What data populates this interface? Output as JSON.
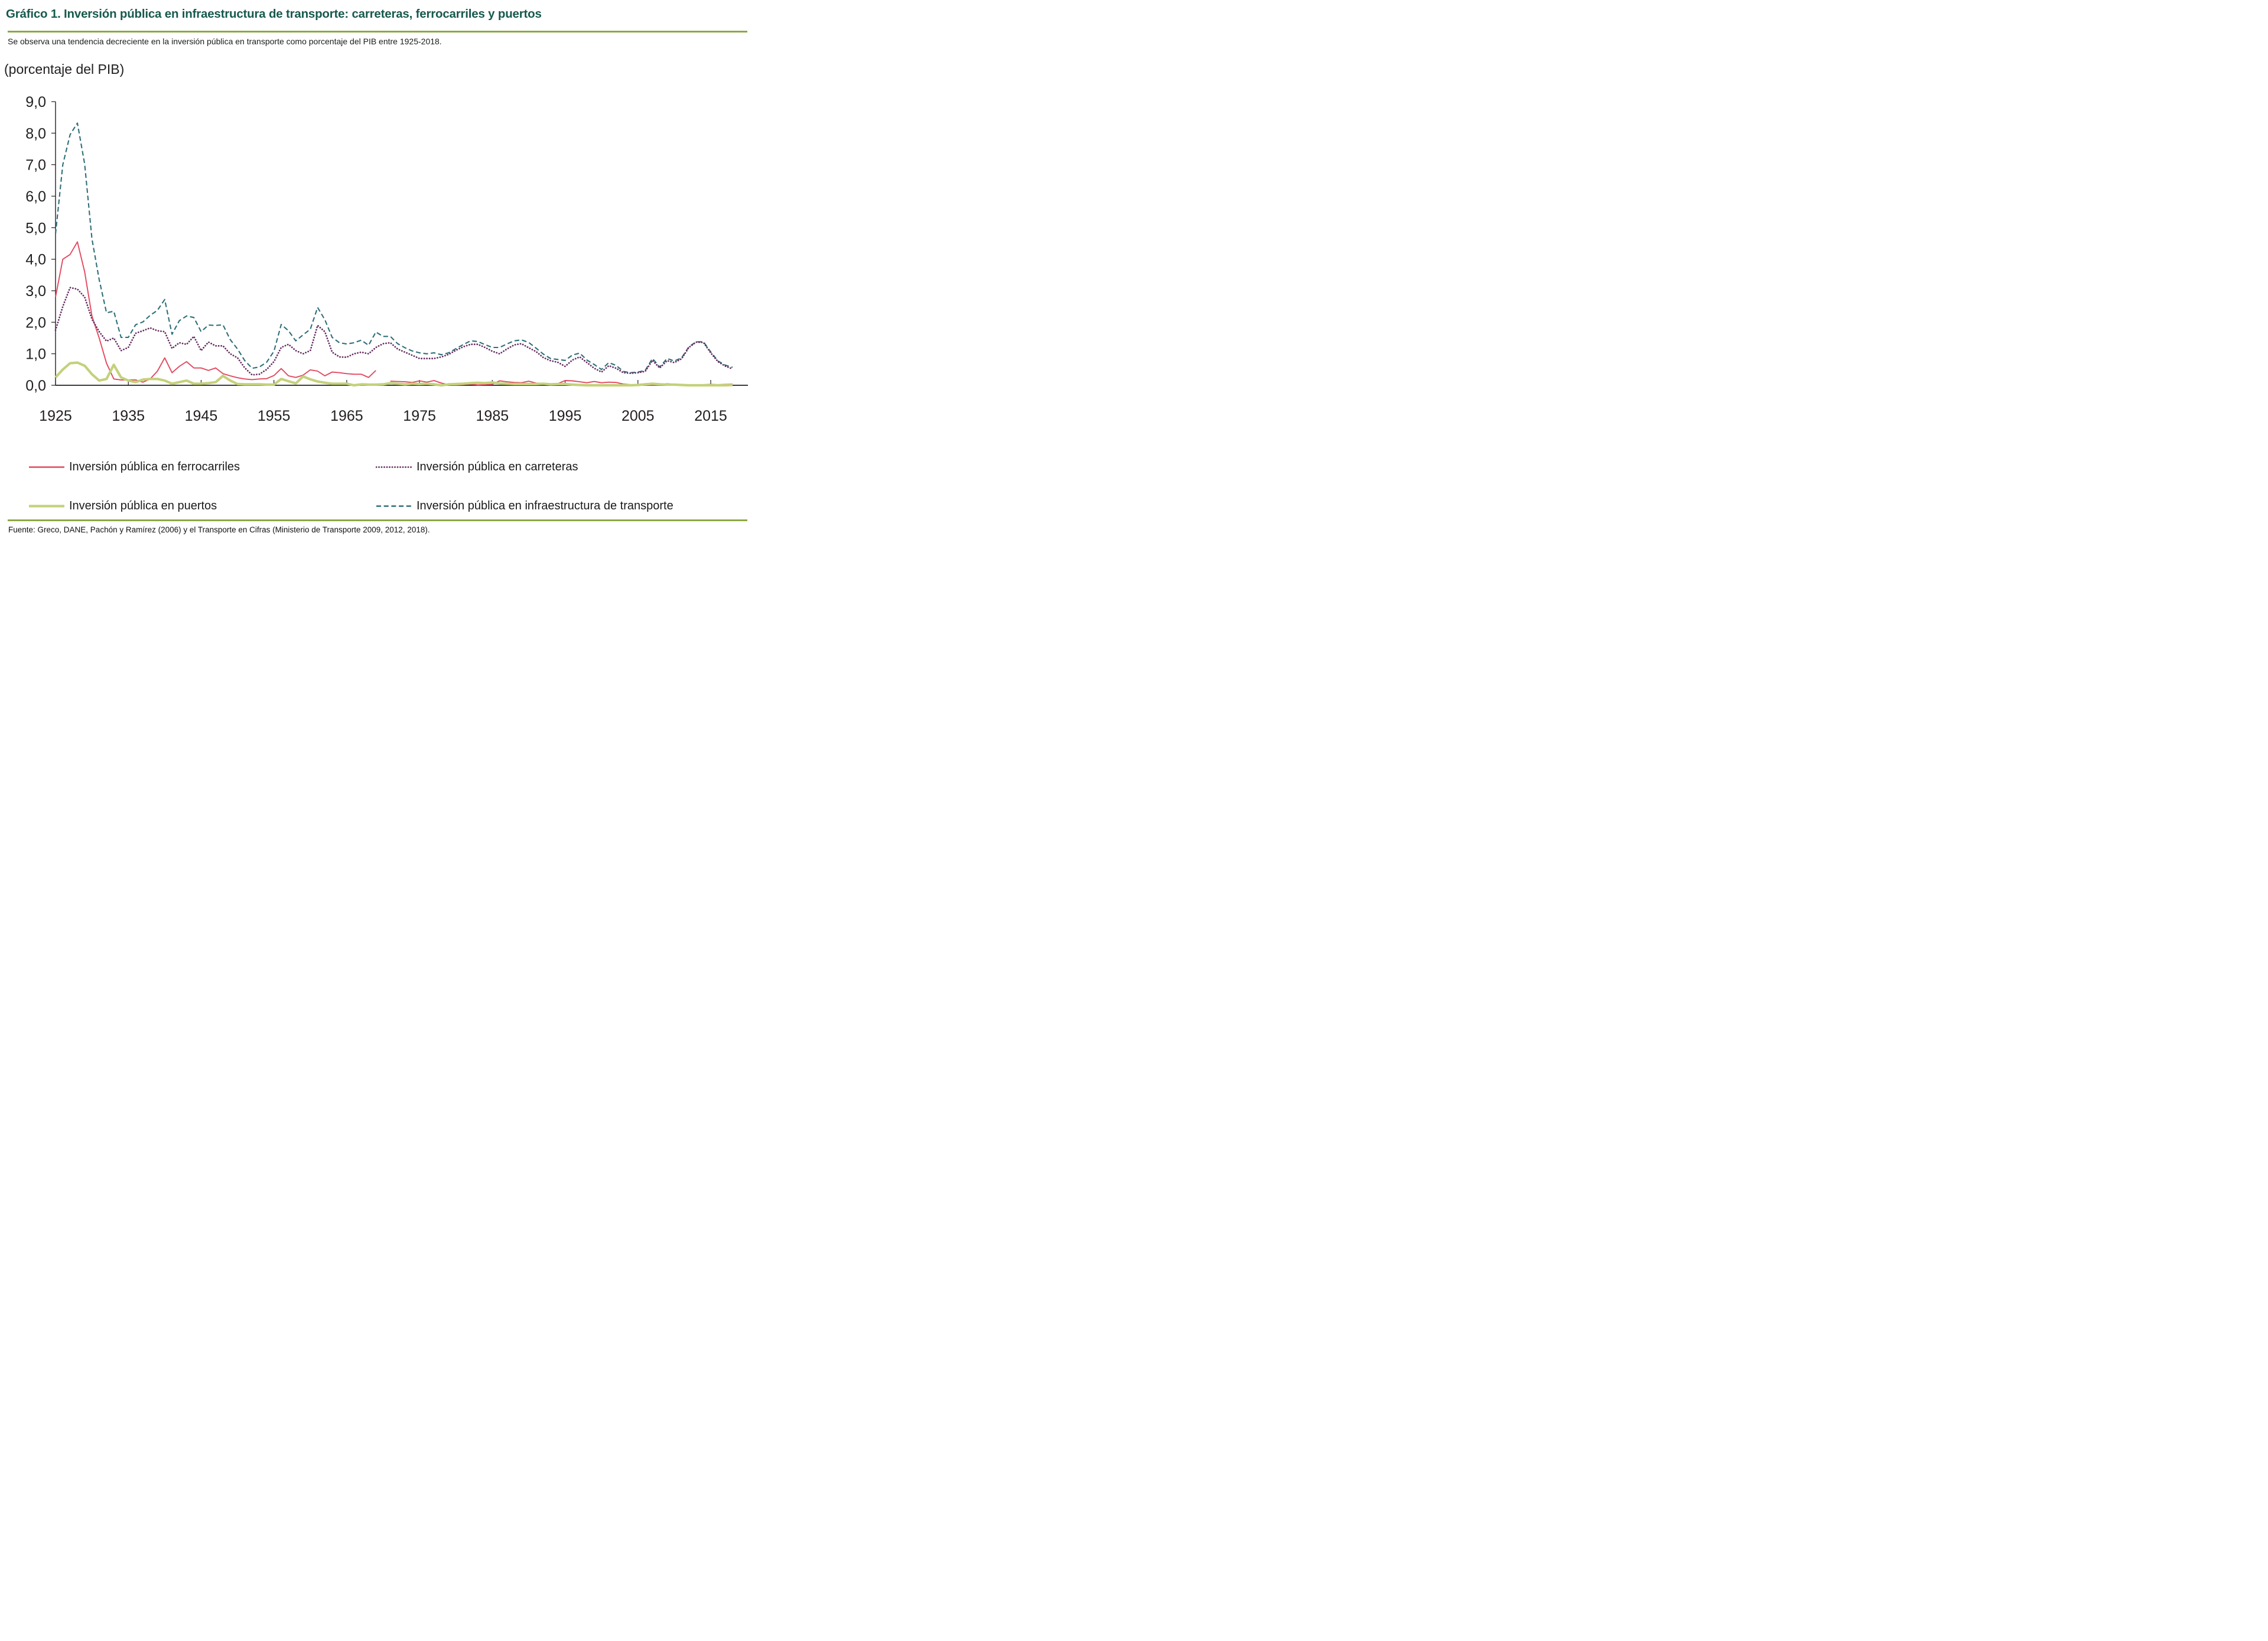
{
  "header": {
    "title": "Gráfico 1. Inversión pública en infraestructura de transporte: carreteras, ferrocarriles y puertos",
    "subtitle": "Se observa una tendencia decreciente en la inversión pública en transporte como porcentaje del PIB entre 1925-2018.",
    "title_color": "#17594e",
    "accent_rule_color": "#8ca845"
  },
  "chart_data": {
    "type": "line",
    "title": "Inversión pública en infraestructura de transporte (porcentaje del PIB), 1925-2018",
    "unit_label": "(porcentaje del PIB)",
    "xlabel": "",
    "ylabel": "porcentaje del PIB",
    "ylim": [
      0,
      9
    ],
    "xlim": [
      1925,
      2020
    ],
    "grid": false,
    "legend_position": "bottom",
    "axis_color": "#231f20",
    "y_ticks": [
      0,
      1,
      2,
      3,
      4,
      5,
      6,
      7,
      8,
      9
    ],
    "y_tick_labels": [
      "0,0",
      "1,0",
      "2,0",
      "3,0",
      "4,0",
      "5,0",
      "6,0",
      "7,0",
      "8,0",
      "9,0"
    ],
    "x_ticks": [
      1925,
      1935,
      1945,
      1955,
      1965,
      1975,
      1985,
      1995,
      2005,
      2015
    ],
    "x_tick_labels": [
      "1925",
      "1935",
      "1945",
      "1955",
      "1965",
      "1975",
      "1985",
      "1995",
      "2005",
      "2015"
    ],
    "x": [
      1925,
      1926,
      1927,
      1928,
      1929,
      1930,
      1931,
      1932,
      1933,
      1934,
      1935,
      1936,
      1937,
      1938,
      1939,
      1940,
      1941,
      1942,
      1943,
      1944,
      1945,
      1946,
      1947,
      1948,
      1949,
      1950,
      1951,
      1952,
      1953,
      1954,
      1955,
      1956,
      1957,
      1958,
      1959,
      1960,
      1961,
      1962,
      1963,
      1964,
      1965,
      1966,
      1967,
      1968,
      1969,
      1970,
      1971,
      1972,
      1973,
      1974,
      1975,
      1976,
      1977,
      1978,
      1979,
      1980,
      1981,
      1982,
      1983,
      1984,
      1985,
      1986,
      1987,
      1988,
      1989,
      1990,
      1991,
      1992,
      1993,
      1994,
      1995,
      1996,
      1997,
      1998,
      1999,
      2000,
      2001,
      2002,
      2003,
      2004,
      2005,
      2006,
      2007,
      2008,
      2009,
      2010,
      2011,
      2012,
      2013,
      2014,
      2015,
      2016,
      2017,
      2018
    ],
    "series": [
      {
        "key": "ferrocarriles",
        "name": "Inversión pública en ferrocarriles",
        "color": "#e2495f",
        "style": "solid",
        "width": 1.9,
        "values": [
          2.8,
          4.0,
          4.15,
          4.55,
          3.6,
          2.2,
          1.5,
          0.7,
          0.2,
          0.17,
          0.17,
          0.17,
          0.1,
          0.2,
          0.45,
          0.87,
          0.4,
          0.6,
          0.75,
          0.55,
          0.55,
          0.47,
          0.55,
          0.37,
          0.3,
          0.24,
          0.2,
          0.18,
          0.2,
          0.21,
          0.31,
          0.53,
          0.3,
          0.25,
          0.32,
          0.49,
          0.45,
          0.3,
          0.42,
          0.4,
          0.37,
          0.35,
          0.35,
          0.25,
          0.47,
          null,
          0.13,
          0.12,
          0.11,
          0.09,
          0.14,
          0.1,
          0.15,
          0.07,
          0.02,
          0.01,
          0.02,
          0.04,
          0.01,
          0.02,
          0.03,
          0.14,
          0.11,
          0.09,
          0.08,
          0.13,
          0.07,
          0.06,
          0.04,
          0.05,
          0.15,
          0.14,
          0.11,
          0.08,
          0.12,
          0.08,
          0.1,
          0.09,
          0.04,
          0.02,
          0.01,
          0.0,
          0.01,
          0.0,
          0.05,
          0.03,
          0.02,
          0.02,
          0.01,
          0.02,
          0.03,
          0.02,
          0.03,
          0.04
        ]
      },
      {
        "key": "carreteras",
        "name": "Inversión pública en carreteras",
        "color": "#683064",
        "style": "dotted",
        "width": 2.8,
        "values": [
          1.75,
          2.5,
          3.1,
          3.05,
          2.8,
          2.1,
          1.7,
          1.4,
          1.5,
          1.1,
          1.2,
          1.65,
          1.73,
          1.82,
          1.73,
          1.7,
          1.17,
          1.35,
          1.3,
          1.55,
          1.1,
          1.37,
          1.25,
          1.25,
          1.0,
          0.87,
          0.55,
          0.33,
          0.35,
          0.5,
          0.75,
          1.2,
          1.3,
          1.1,
          1.0,
          1.1,
          1.9,
          1.7,
          1.05,
          0.9,
          0.89,
          1.0,
          1.05,
          1.0,
          1.2,
          1.32,
          1.35,
          1.15,
          1.05,
          0.95,
          0.85,
          0.85,
          0.85,
          0.9,
          0.98,
          1.11,
          1.22,
          1.3,
          1.3,
          1.2,
          1.08,
          1.0,
          1.15,
          1.28,
          1.32,
          1.19,
          1.07,
          0.88,
          0.78,
          0.73,
          0.6,
          0.8,
          0.9,
          0.72,
          0.54,
          0.42,
          0.62,
          0.54,
          0.4,
          0.38,
          0.4,
          0.44,
          0.79,
          0.55,
          0.78,
          0.72,
          0.84,
          1.2,
          1.37,
          1.36,
          1.03,
          0.75,
          0.61,
          0.52
        ]
      },
      {
        "key": "puertos",
        "name": "Inversión pública en puertos",
        "color": "#c4d17a",
        "style": "solid",
        "width": 4.2,
        "values": [
          0.25,
          0.5,
          0.7,
          0.72,
          0.62,
          0.35,
          0.15,
          0.2,
          0.65,
          0.25,
          0.15,
          0.1,
          0.18,
          0.2,
          0.2,
          0.15,
          0.05,
          0.1,
          0.15,
          0.05,
          0.05,
          0.07,
          0.1,
          0.3,
          0.15,
          0.04,
          0.03,
          0.03,
          0.03,
          0.02,
          0.02,
          0.2,
          0.13,
          0.06,
          0.28,
          0.19,
          0.12,
          0.08,
          0.05,
          0.05,
          0.05,
          0.0,
          0.03,
          0.02,
          0.02,
          0.03,
          0.07,
          0.05,
          0.03,
          0.05,
          0.04,
          0.05,
          0.03,
          0.0,
          0.03,
          0.04,
          0.05,
          0.07,
          0.08,
          0.07,
          0.09,
          0.06,
          0.05,
          0.04,
          0.04,
          0.04,
          0.04,
          0.05,
          0.03,
          0.04,
          0.04,
          0.02,
          0.01,
          0.0,
          0.0,
          0.0,
          0.0,
          0.0,
          0.0,
          0.0,
          0.01,
          0.03,
          0.05,
          0.03,
          0.02,
          0.02,
          0.01,
          0.0,
          0.0,
          0.0,
          0.0,
          0.0,
          0.0,
          0.01
        ]
      },
      {
        "key": "transporte",
        "name": "Inversión pública en infraestructura de transporte",
        "color": "#2e6f78",
        "style": "dashed",
        "width": 2.1,
        "values": [
          4.8,
          7.0,
          7.95,
          8.32,
          7.02,
          4.65,
          3.35,
          2.3,
          2.35,
          1.52,
          1.52,
          1.92,
          2.01,
          2.22,
          2.38,
          2.72,
          1.62,
          2.05,
          2.2,
          2.15,
          1.7,
          1.91,
          1.9,
          1.92,
          1.45,
          1.15,
          0.78,
          0.54,
          0.58,
          0.73,
          1.08,
          1.93,
          1.73,
          1.41,
          1.6,
          1.78,
          2.47,
          2.08,
          1.52,
          1.35,
          1.31,
          1.35,
          1.43,
          1.27,
          1.69,
          1.55,
          1.55,
          1.32,
          1.19,
          1.09,
          1.03,
          1.0,
          1.03,
          0.97,
          1.03,
          1.16,
          1.29,
          1.41,
          1.39,
          1.29,
          1.2,
          1.2,
          1.31,
          1.41,
          1.44,
          1.36,
          1.18,
          0.99,
          0.85,
          0.82,
          0.79,
          0.96,
          1.02,
          0.8,
          0.66,
          0.5,
          0.72,
          0.63,
          0.44,
          0.4,
          0.42,
          0.47,
          0.85,
          0.58,
          0.85,
          0.77,
          0.87,
          1.22,
          1.38,
          1.38,
          1.06,
          0.77,
          0.64,
          0.57
        ]
      }
    ]
  },
  "footer": {
    "source": "Fuente: Greco, DANE, Pachón y Ramírez (2006) y el Transporte en Cifras (Ministerio de Transporte 2009, 2012, 2018)."
  }
}
